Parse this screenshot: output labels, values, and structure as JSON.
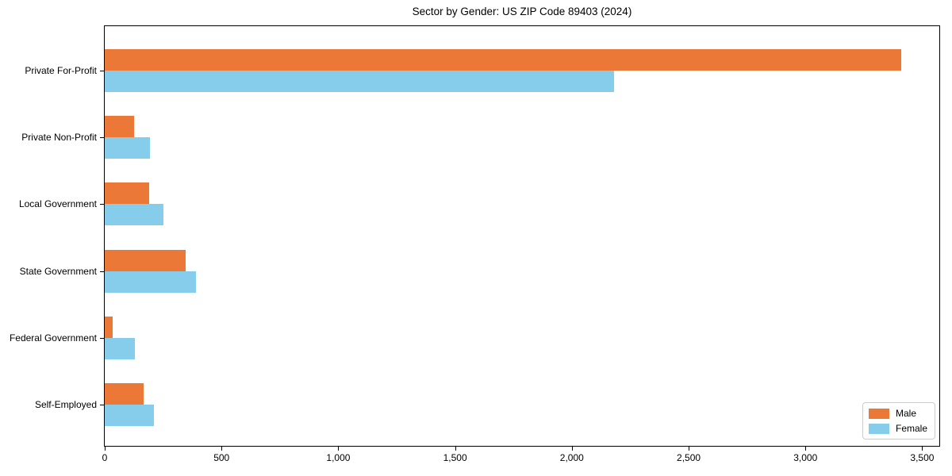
{
  "chart_data": {
    "type": "bar",
    "orientation": "horizontal",
    "title": "Sector by Gender: US ZIP Code 89403 (2024)",
    "categories": [
      "Private For-Profit",
      "Private Non-Profit",
      "Local Government",
      "State Government",
      "Federal Government",
      "Self-Employed"
    ],
    "series": [
      {
        "name": "Male",
        "color": "#EC7838",
        "values": [
          3410,
          125,
          190,
          345,
          35,
          165
        ]
      },
      {
        "name": "Female",
        "color": "#85CDEA",
        "values": [
          2180,
          195,
          250,
          390,
          130,
          210
        ]
      }
    ],
    "xlabel": "",
    "ylabel": "",
    "xlim": [
      0,
      3580
    ],
    "xticks": [
      0,
      500,
      1000,
      1500,
      2000,
      2500,
      3000,
      3500
    ],
    "xtick_labels": [
      "0",
      "500",
      "1,000",
      "1,500",
      "2,000",
      "2,500",
      "3,000",
      "3,500"
    ],
    "grid": false,
    "legend_position": "lower right",
    "axis_color": "#000000"
  }
}
